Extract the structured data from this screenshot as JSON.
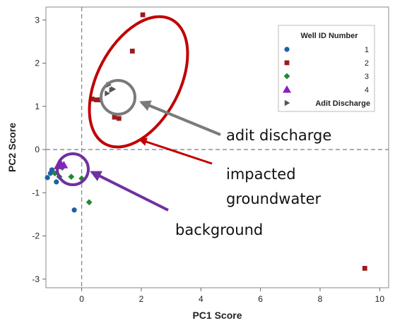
{
  "chart_data": {
    "type": "scatter",
    "title": "",
    "xlabel": "PC1 Score",
    "ylabel": "PC2 Score",
    "xlim": [
      -1.2,
      10.3
    ],
    "ylim": [
      -3.2,
      3.3
    ],
    "x_ticks": [
      0,
      2,
      4,
      6,
      8,
      10
    ],
    "y_ticks": [
      -3,
      -2,
      -1,
      0,
      1,
      2,
      3
    ],
    "reference_lines": {
      "x": 0,
      "y": 0
    },
    "legend": {
      "title": "Well ID Number",
      "position": "top-right"
    },
    "series": [
      {
        "name": "1",
        "marker": "circle",
        "color": "#1f5fa6",
        "points": [
          [
            -1.15,
            -0.65
          ],
          [
            -1.05,
            -0.55
          ],
          [
            -0.85,
            -0.75
          ],
          [
            -1.0,
            -0.47
          ],
          [
            -0.25,
            -1.4
          ]
        ]
      },
      {
        "name": "2",
        "marker": "square",
        "color": "#9b1c1c",
        "points": [
          [
            2.05,
            3.12
          ],
          [
            1.7,
            2.28
          ],
          [
            1.25,
            0.72
          ],
          [
            1.1,
            0.75
          ],
          [
            0.35,
            1.17
          ],
          [
            0.5,
            1.15
          ],
          [
            0.6,
            1.15
          ],
          [
            9.5,
            -2.75
          ]
        ]
      },
      {
        "name": "3",
        "marker": "diamond",
        "color": "#1e8a2e",
        "points": [
          [
            -0.9,
            -0.55
          ],
          [
            -0.75,
            -0.63
          ],
          [
            -0.35,
            -0.63
          ],
          [
            0.0,
            -0.67
          ],
          [
            0.25,
            -1.22
          ],
          [
            -0.65,
            -0.42
          ]
        ]
      },
      {
        "name": "4",
        "marker": "triangle",
        "color": "#8b1fc4",
        "points": [
          [
            -0.8,
            -0.38
          ],
          [
            -0.7,
            -0.33
          ],
          [
            -0.6,
            -0.36
          ]
        ]
      },
      {
        "name": "Adit Discharge",
        "marker": "triangle-right",
        "color": "#555555",
        "points": [
          [
            0.9,
            1.5
          ],
          [
            0.85,
            1.3
          ],
          [
            1.0,
            1.38
          ],
          [
            1.05,
            1.4
          ]
        ]
      }
    ],
    "annotations": [
      {
        "text": "adit discharge",
        "color": "#7a7a7a"
      },
      {
        "text": "impacted",
        "color": "#c00000"
      },
      {
        "text": "groundwater",
        "color": "#c00000"
      },
      {
        "text": "background",
        "color": "#7030a0"
      }
    ]
  }
}
